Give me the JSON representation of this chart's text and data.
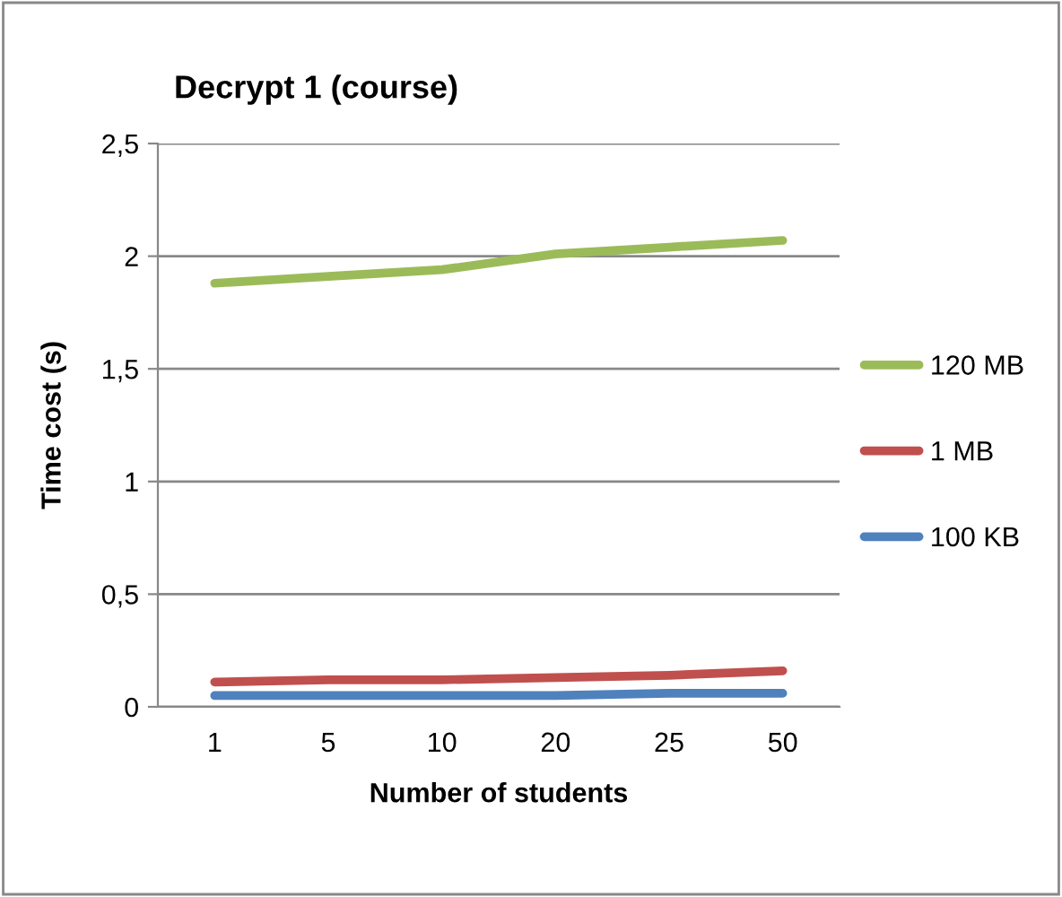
{
  "chart_data": {
    "type": "line",
    "title": "Decrypt 1 (course)",
    "xlabel": "Number of students",
    "ylabel": "Time cost (s)",
    "categories": [
      "1",
      "5",
      "10",
      "20",
      "25",
      "50"
    ],
    "series": [
      {
        "name": "120 MB",
        "color": "#9bbb59",
        "values": [
          1.88,
          1.91,
          1.94,
          2.01,
          2.04,
          2.07
        ]
      },
      {
        "name": "1 MB",
        "color": "#c0504d",
        "values": [
          0.11,
          0.12,
          0.12,
          0.13,
          0.14,
          0.16
        ]
      },
      {
        "name": "100 KB",
        "color": "#4f81bd",
        "values": [
          0.05,
          0.05,
          0.05,
          0.05,
          0.06,
          0.06
        ]
      }
    ],
    "ylim": [
      0,
      2.5
    ],
    "yticks": [
      {
        "value": 0,
        "label": "0"
      },
      {
        "value": 0.5,
        "label": "0,5"
      },
      {
        "value": 1,
        "label": "1"
      },
      {
        "value": 1.5,
        "label": "1,5"
      },
      {
        "value": 2,
        "label": "2"
      },
      {
        "value": 2.5,
        "label": "2,5"
      }
    ],
    "grid": "y",
    "legend": "right",
    "marker": "none",
    "line_style": "solid"
  }
}
